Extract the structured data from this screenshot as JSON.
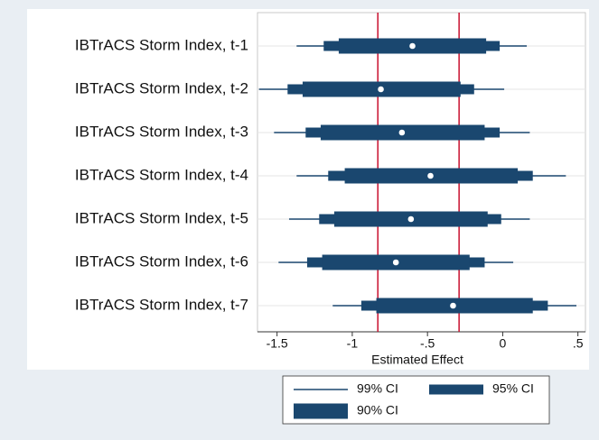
{
  "chart_data": {
    "type": "coefplot",
    "categories": [
      "IBTrACS Storm Index, t-1",
      "IBTrACS Storm Index, t-2",
      "IBTrACS Storm Index, t-3",
      "IBTrACS Storm Index, t-4",
      "IBTrACS Storm Index, t-5",
      "IBTrACS Storm Index, t-6",
      "IBTrACS Storm Index, t-7"
    ],
    "values": [
      -0.6,
      -0.81,
      -0.67,
      -0.48,
      -0.61,
      -0.71,
      -0.33
    ],
    "point_color": "#ffffff",
    "series": [
      {
        "name": "99% CI",
        "color": "#1a476f",
        "low": [
          -1.37,
          -1.62,
          -1.52,
          -1.37,
          -1.42,
          -1.49,
          -1.13
        ],
        "high": [
          0.16,
          0.01,
          0.18,
          0.42,
          0.18,
          0.07,
          0.49
        ]
      },
      {
        "name": "95% CI",
        "color": "#1a476f",
        "low": [
          -1.19,
          -1.43,
          -1.31,
          -1.16,
          -1.22,
          -1.3,
          -0.94
        ],
        "high": [
          -0.02,
          -0.19,
          -0.02,
          0.2,
          -0.01,
          -0.12,
          0.3
        ]
      },
      {
        "name": "90% CI",
        "color": "#1a476f",
        "low": [
          -1.09,
          -1.33,
          -1.21,
          -1.05,
          -1.12,
          -1.2,
          -0.84
        ],
        "high": [
          -0.11,
          -0.28,
          -0.12,
          0.1,
          -0.1,
          -0.22,
          0.2
        ]
      }
    ],
    "reference_lines": [
      -0.83,
      -0.29
    ],
    "reference_color": "#c8102e",
    "xlabel": "Estimated Effect",
    "xlim": [
      -1.63,
      0.55
    ],
    "xticks": [
      -1.5,
      -1,
      {
        "value": -0.5,
        "label": "-.5"
      },
      0,
      {
        "value": 0.5,
        "label": ".5"
      }
    ],
    "grid": true
  }
}
